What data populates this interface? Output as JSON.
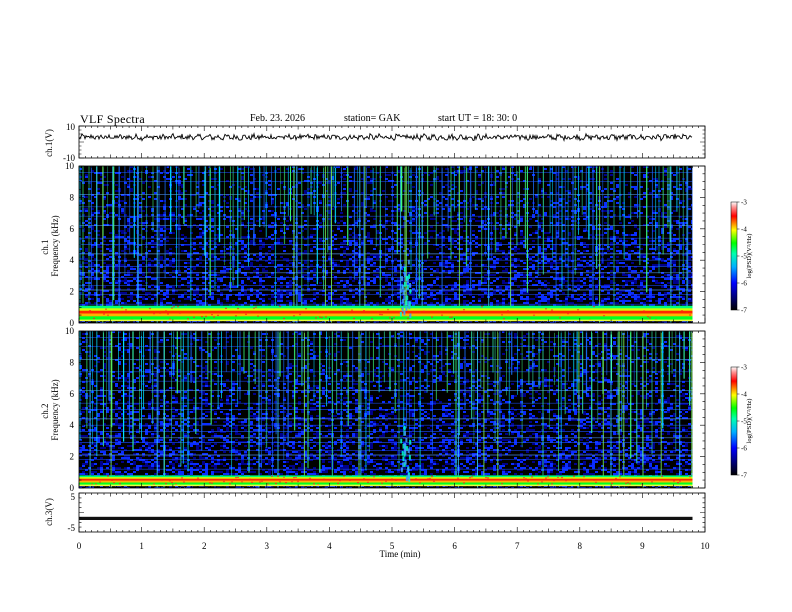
{
  "header": {
    "title": "VLF  Spectra",
    "date": "Feb. 23. 2026",
    "station": "station= GAK",
    "start": "start  UT  =   18: 30: 0"
  },
  "chart_data": [
    {
      "id": "ch1-waveform",
      "type": "line",
      "ylabel": "ch.1(V)",
      "ylim": [
        -10,
        10
      ],
      "yticks": [
        "10",
        "-10"
      ],
      "x_range_min": [
        0,
        10
      ],
      "baseline_level_v": 3
    },
    {
      "id": "ch1-spectrogram",
      "type": "heatmap",
      "ylabel": "ch.1\nFrequency  (kHz)",
      "ylim": [
        0,
        10
      ],
      "yticks": [
        "0",
        "2",
        "4",
        "6",
        "8",
        "10"
      ],
      "x_range_min": [
        0,
        9.8
      ],
      "colorbar": {
        "label": "log(PSD)(V²/Hz)",
        "range": [
          -7,
          -3
        ],
        "ticks": [
          "-3",
          "-4",
          "-5",
          "-6",
          "-7"
        ]
      },
      "features": {
        "strong_band_khz": [
          0.2,
          1.1
        ],
        "broadband_noise_at_min": 5.2
      }
    },
    {
      "id": "ch2-spectrogram",
      "type": "heatmap",
      "ylabel": "ch.2\nFrequency  (kHz)",
      "ylim": [
        0,
        10
      ],
      "yticks": [
        "0",
        "2",
        "4",
        "6",
        "8",
        "10"
      ],
      "x_range_min": [
        0,
        9.8
      ],
      "colorbar": {
        "label": "log(PSD)(V²/Hz)",
        "range": [
          -7,
          -3
        ],
        "ticks": [
          "-3",
          "-4",
          "-5",
          "-6",
          "-7"
        ]
      },
      "features": {
        "strong_band_khz": [
          0.2,
          0.8
        ],
        "broadband_noise_at_min": 5.2
      }
    },
    {
      "id": "ch3-waveform",
      "type": "line",
      "ylabel": "ch.3(V)",
      "ylim": [
        -5,
        5
      ],
      "yticks": [
        "5",
        "-5"
      ],
      "x_range_min": [
        0,
        9.8
      ],
      "baseline_level_v": -1.5
    }
  ],
  "xaxis": {
    "label": "Time  (min)",
    "range": [
      0,
      10
    ],
    "ticks": [
      "0",
      "1",
      "2",
      "3",
      "4",
      "5",
      "6",
      "7",
      "8",
      "9",
      "10"
    ]
  },
  "colors": {
    "frame": "#000000",
    "background": "#ffffff",
    "spectrogram_background": "#000000"
  }
}
